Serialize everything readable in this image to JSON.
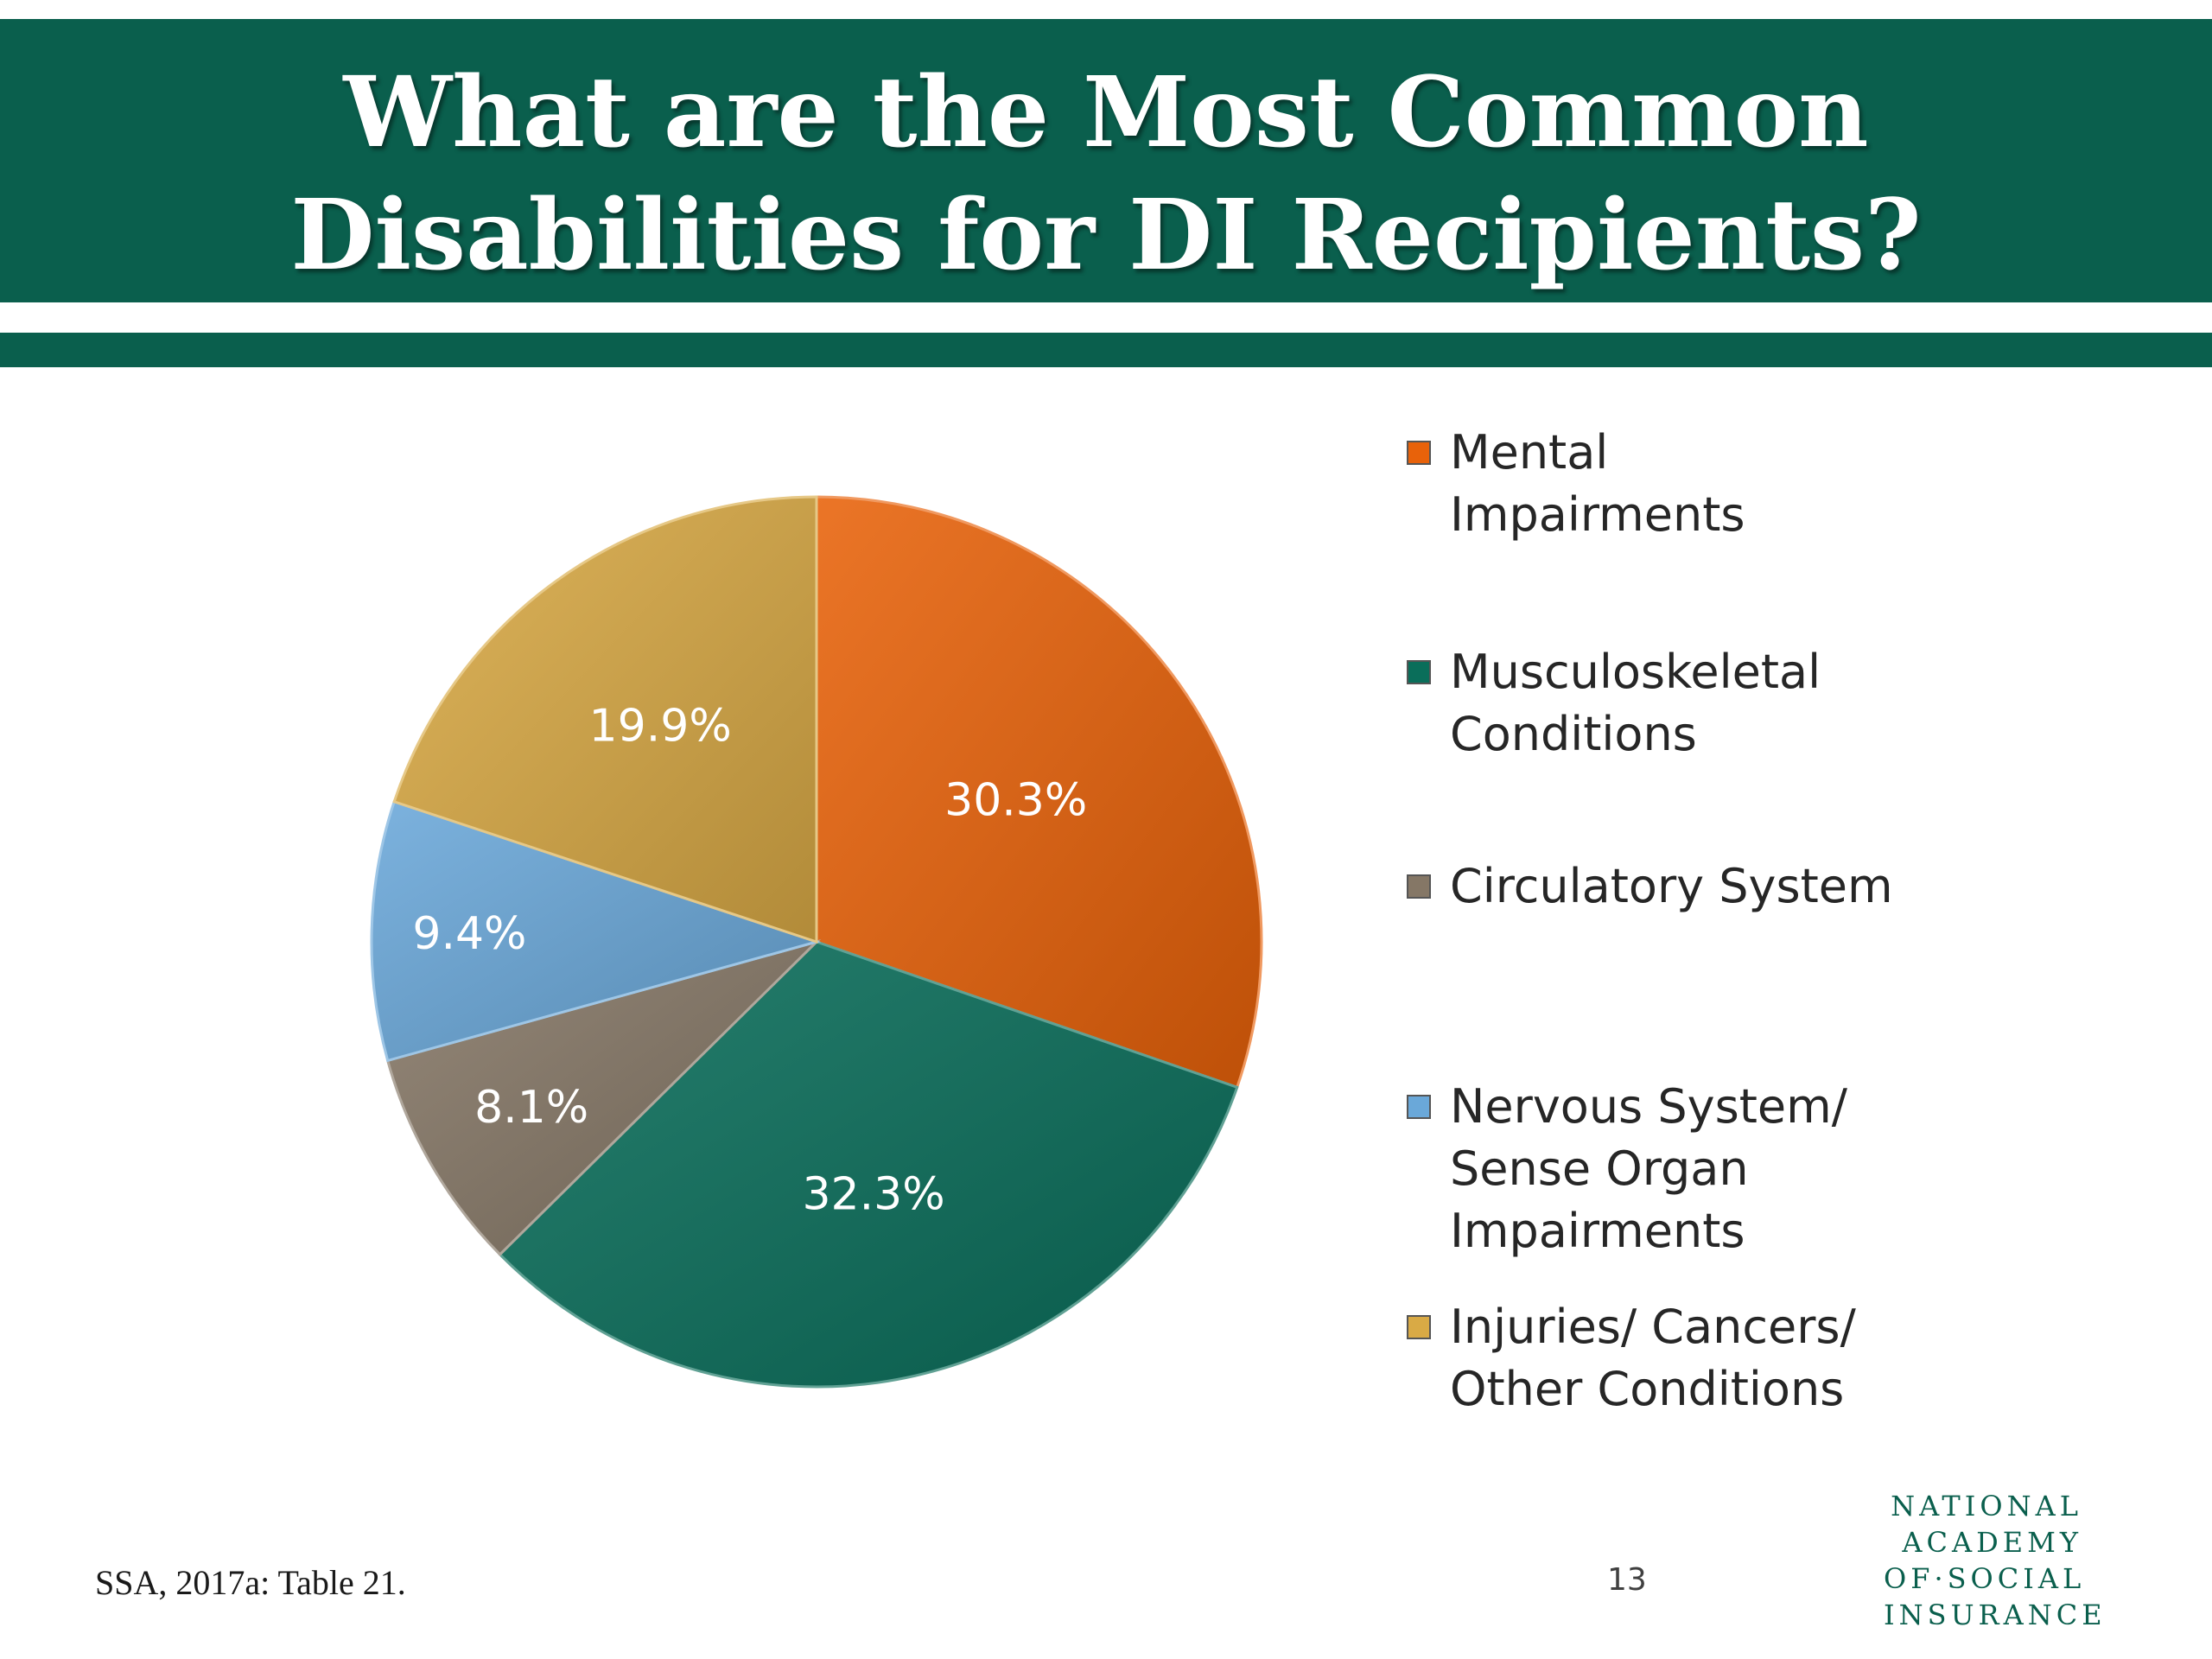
{
  "slide": {
    "title_line1": "What are the Most Common",
    "title_line2": "Disabilities for DI Recipients?",
    "source": "SSA, 2017a: Table 21.",
    "page_number": "13",
    "logo_lines": [
      "NATIONAL",
      "ACADEMY",
      "OF·SOCIAL",
      "INSURANCE"
    ],
    "brand_color": "#0a5f4d"
  },
  "chart_data": {
    "type": "pie",
    "title": "",
    "start_angle_deg": 0,
    "direction": "clockwise",
    "legend_position": "right",
    "series": [
      {
        "name": "Mental Impairments",
        "legend_lines": [
          "Mental",
          "Impairments"
        ],
        "value": 30.3,
        "label": "30.3%",
        "color": "#e8620a"
      },
      {
        "name": "Musculoskeletal Conditions",
        "legend_lines": [
          "Musculoskeletal",
          "Conditions"
        ],
        "value": 32.3,
        "label": "32.3%",
        "color": "#0a6e5a"
      },
      {
        "name": "Circulatory System",
        "legend_lines": [
          "Circulatory System"
        ],
        "value": 8.1,
        "label": "8.1%",
        "color": "#857766"
      },
      {
        "name": "Nervous System/ Sense Organ Impairments",
        "legend_lines": [
          "Nervous System/",
          "Sense Organ",
          "Impairments"
        ],
        "value": 9.4,
        "label": "9.4%",
        "color": "#6aa8d9"
      },
      {
        "name": "Injuries/ Cancers/ Other Conditions",
        "legend_lines": [
          "Injuries/ Cancers/",
          "Other Conditions"
        ],
        "value": 19.9,
        "label": "19.9%",
        "color": "#d9aa45"
      }
    ]
  }
}
